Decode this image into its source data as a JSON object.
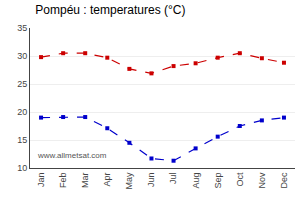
{
  "chart_data": {
    "type": "line",
    "title": "Pompéu : temperatures (°C)",
    "categories": [
      "Jan",
      "Feb",
      "Mar",
      "Apr",
      "May",
      "Jun",
      "Jul",
      "Aug",
      "Sep",
      "Oct",
      "Nov",
      "Dec"
    ],
    "series": [
      {
        "color": "#cc0000",
        "values": [
          29.8,
          30.5,
          30.5,
          29.7,
          27.7,
          26.9,
          28.2,
          28.7,
          29.7,
          30.5,
          29.6,
          28.8
        ]
      },
      {
        "color": "#0000cc",
        "values": [
          19.0,
          19.1,
          19.1,
          17.1,
          14.5,
          11.7,
          11.3,
          13.5,
          15.6,
          17.5,
          18.5,
          19.0
        ]
      }
    ],
    "ylim": [
      10,
      35
    ],
    "yticks": [
      10,
      15,
      20,
      25,
      30,
      35
    ],
    "grid": true,
    "marker": "square",
    "line_style": "dashed",
    "annotations": [
      "www.allmetsat.com"
    ]
  }
}
